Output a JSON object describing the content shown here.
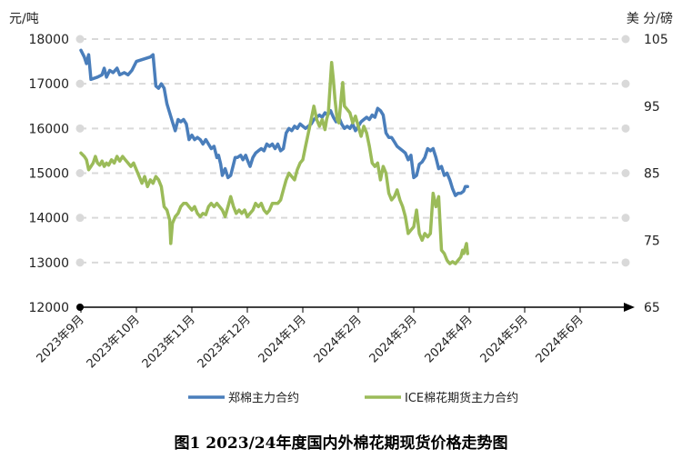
{
  "caption": "图1 2023/24年度国内外棉花期现货价格走势图",
  "chart_data": {
    "type": "line",
    "title": "图1 2023/24年度国内外棉花期现货价格走势图",
    "left_axis": {
      "unit": "元/吨",
      "range": [
        12000,
        18000
      ],
      "ticks": [
        12000,
        13000,
        14000,
        15000,
        16000,
        17000,
        18000
      ]
    },
    "right_axis": {
      "unit": "美 分/磅",
      "range": [
        65,
        105
      ],
      "ticks": [
        65,
        75,
        85,
        95,
        105
      ]
    },
    "x_categories": [
      "2023年9月",
      "2023年10月",
      "2023年11月",
      "2023年12月",
      "2024年1月",
      "2024年2月",
      "2024年3月",
      "2024年4月",
      "2024年5月",
      "2024年6月"
    ],
    "grid": "horizontal dashed",
    "legend_position": "bottom",
    "colors": {
      "zce": "#4a7ebb",
      "ice": "#9bbb59",
      "grid": "#d9d9d9",
      "axis": "#000000"
    },
    "series": [
      {
        "name": "郑棉主力合约",
        "axis": "left",
        "points": [
          [
            0.0,
            17750
          ],
          [
            0.06,
            17600
          ],
          [
            0.1,
            17450
          ],
          [
            0.14,
            17650
          ],
          [
            0.18,
            17100
          ],
          [
            0.3,
            17150
          ],
          [
            0.38,
            17200
          ],
          [
            0.42,
            17350
          ],
          [
            0.46,
            17150
          ],
          [
            0.52,
            17300
          ],
          [
            0.58,
            17250
          ],
          [
            0.65,
            17350
          ],
          [
            0.7,
            17200
          ],
          [
            0.78,
            17250
          ],
          [
            0.85,
            17200
          ],
          [
            0.92,
            17300
          ],
          [
            1.0,
            17500
          ],
          [
            1.25,
            17600
          ],
          [
            1.3,
            17650
          ],
          [
            1.35,
            16950
          ],
          [
            1.4,
            16900
          ],
          [
            1.45,
            17000
          ],
          [
            1.5,
            16900
          ],
          [
            1.55,
            16550
          ],
          [
            1.6,
            16350
          ],
          [
            1.65,
            16150
          ],
          [
            1.7,
            15950
          ],
          [
            1.75,
            16200
          ],
          [
            1.8,
            16150
          ],
          [
            1.85,
            16200
          ],
          [
            1.9,
            16100
          ],
          [
            1.95,
            15750
          ],
          [
            2.0,
            15850
          ],
          [
            2.05,
            15750
          ],
          [
            2.1,
            15800
          ],
          [
            2.15,
            15750
          ],
          [
            2.2,
            15650
          ],
          [
            2.25,
            15750
          ],
          [
            2.3,
            15650
          ],
          [
            2.35,
            15550
          ],
          [
            2.4,
            15600
          ],
          [
            2.45,
            15350
          ],
          [
            2.48,
            15400
          ],
          [
            2.52,
            15200
          ],
          [
            2.55,
            14950
          ],
          [
            2.6,
            15100
          ],
          [
            2.65,
            14900
          ],
          [
            2.7,
            14950
          ],
          [
            2.75,
            15200
          ],
          [
            2.78,
            15350
          ],
          [
            2.82,
            15350
          ],
          [
            2.88,
            15400
          ],
          [
            2.92,
            15300
          ],
          [
            2.97,
            15400
          ],
          [
            3.0,
            15300
          ],
          [
            3.05,
            15150
          ],
          [
            3.1,
            15350
          ],
          [
            3.15,
            15450
          ],
          [
            3.2,
            15500
          ],
          [
            3.25,
            15550
          ],
          [
            3.3,
            15500
          ],
          [
            3.35,
            15650
          ],
          [
            3.4,
            15600
          ],
          [
            3.45,
            15650
          ],
          [
            3.5,
            15550
          ],
          [
            3.55,
            15650
          ],
          [
            3.6,
            15500
          ],
          [
            3.65,
            15550
          ],
          [
            3.7,
            15900
          ],
          [
            3.75,
            16000
          ],
          [
            3.8,
            15950
          ],
          [
            3.85,
            16050
          ],
          [
            3.9,
            16000
          ],
          [
            3.95,
            16100
          ],
          [
            4.0,
            16050
          ],
          [
            4.05,
            16000
          ],
          [
            4.1,
            16050
          ],
          [
            4.15,
            16100
          ],
          [
            4.2,
            16200
          ],
          [
            4.25,
            16250
          ],
          [
            4.3,
            16300
          ],
          [
            4.35,
            16250
          ],
          [
            4.4,
            16350
          ],
          [
            4.45,
            16300
          ],
          [
            4.5,
            16400
          ],
          [
            4.55,
            16250
          ],
          [
            4.6,
            16150
          ],
          [
            4.65,
            16250
          ],
          [
            4.7,
            16100
          ],
          [
            4.75,
            16000
          ],
          [
            4.8,
            16050
          ],
          [
            4.85,
            16000
          ],
          [
            4.9,
            16100
          ],
          [
            4.95,
            15950
          ],
          [
            5.0,
            16050
          ],
          [
            5.05,
            16150
          ],
          [
            5.1,
            16200
          ],
          [
            5.15,
            16250
          ],
          [
            5.2,
            16200
          ],
          [
            5.25,
            16300
          ],
          [
            5.3,
            16250
          ],
          [
            5.35,
            16450
          ],
          [
            5.4,
            16400
          ],
          [
            5.45,
            16300
          ],
          [
            5.5,
            15900
          ],
          [
            5.55,
            15800
          ],
          [
            5.6,
            15800
          ],
          [
            5.65,
            15700
          ],
          [
            5.7,
            15600
          ],
          [
            5.75,
            15550
          ],
          [
            5.8,
            15500
          ],
          [
            5.85,
            15450
          ],
          [
            5.9,
            15300
          ],
          [
            5.95,
            15400
          ],
          [
            6.0,
            14900
          ],
          [
            6.05,
            14950
          ],
          [
            6.1,
            15200
          ],
          [
            6.15,
            15250
          ],
          [
            6.2,
            15350
          ],
          [
            6.25,
            15550
          ],
          [
            6.3,
            15500
          ],
          [
            6.35,
            15550
          ],
          [
            6.4,
            15350
          ],
          [
            6.45,
            15100
          ],
          [
            6.5,
            15150
          ],
          [
            6.55,
            14950
          ],
          [
            6.6,
            15000
          ],
          [
            6.65,
            14850
          ],
          [
            6.7,
            14650
          ],
          [
            6.75,
            14500
          ],
          [
            6.8,
            14550
          ],
          [
            6.85,
            14550
          ],
          [
            6.9,
            14600
          ],
          [
            6.93,
            14700
          ],
          [
            6.97,
            14700
          ]
        ]
      },
      {
        "name": "ICE棉花期货主力合约",
        "axis": "right",
        "points": [
          [
            0.0,
            88.0
          ],
          [
            0.06,
            87.5
          ],
          [
            0.1,
            87.0
          ],
          [
            0.14,
            85.5
          ],
          [
            0.18,
            86.0
          ],
          [
            0.22,
            86.5
          ],
          [
            0.26,
            87.5
          ],
          [
            0.3,
            86.5
          ],
          [
            0.34,
            86.2
          ],
          [
            0.38,
            86.8
          ],
          [
            0.42,
            86.0
          ],
          [
            0.46,
            86.5
          ],
          [
            0.5,
            86.2
          ],
          [
            0.55,
            87.0
          ],
          [
            0.6,
            86.5
          ],
          [
            0.65,
            87.5
          ],
          [
            0.7,
            86.8
          ],
          [
            0.75,
            87.5
          ],
          [
            0.8,
            87.0
          ],
          [
            0.85,
            86.5
          ],
          [
            0.9,
            86.0
          ],
          [
            0.95,
            86.5
          ],
          [
            1.0,
            85.5
          ],
          [
            1.05,
            84.5
          ],
          [
            1.1,
            83.5
          ],
          [
            1.15,
            84.5
          ],
          [
            1.2,
            83.0
          ],
          [
            1.25,
            84.0
          ],
          [
            1.3,
            83.5
          ],
          [
            1.35,
            84.5
          ],
          [
            1.4,
            84.0
          ],
          [
            1.45,
            83.0
          ],
          [
            1.5,
            80.0
          ],
          [
            1.55,
            79.5
          ],
          [
            1.6,
            78.0
          ],
          [
            1.62,
            74.5
          ],
          [
            1.65,
            77.5
          ],
          [
            1.7,
            78.5
          ],
          [
            1.75,
            79.0
          ],
          [
            1.8,
            80.0
          ],
          [
            1.85,
            80.5
          ],
          [
            1.9,
            80.5
          ],
          [
            1.95,
            80.0
          ],
          [
            2.0,
            79.5
          ],
          [
            2.05,
            80.0
          ],
          [
            2.1,
            79.0
          ],
          [
            2.15,
            78.5
          ],
          [
            2.2,
            79.0
          ],
          [
            2.25,
            78.8
          ],
          [
            2.3,
            80.0
          ],
          [
            2.35,
            80.5
          ],
          [
            2.4,
            80.0
          ],
          [
            2.45,
            80.5
          ],
          [
            2.5,
            80.0
          ],
          [
            2.55,
            79.5
          ],
          [
            2.6,
            78.5
          ],
          [
            2.65,
            80.0
          ],
          [
            2.7,
            81.5
          ],
          [
            2.75,
            80.0
          ],
          [
            2.8,
            79.0
          ],
          [
            2.85,
            79.5
          ],
          [
            2.9,
            79.0
          ],
          [
            2.95,
            79.5
          ],
          [
            3.0,
            78.5
          ],
          [
            3.05,
            79.0
          ],
          [
            3.1,
            79.5
          ],
          [
            3.15,
            80.5
          ],
          [
            3.2,
            80.0
          ],
          [
            3.25,
            80.5
          ],
          [
            3.3,
            79.5
          ],
          [
            3.35,
            79.0
          ],
          [
            3.4,
            79.5
          ],
          [
            3.45,
            80.5
          ],
          [
            3.5,
            80.5
          ],
          [
            3.55,
            80.5
          ],
          [
            3.6,
            81.0
          ],
          [
            3.65,
            82.5
          ],
          [
            3.7,
            84.0
          ],
          [
            3.75,
            85.0
          ],
          [
            3.8,
            84.5
          ],
          [
            3.85,
            84.0
          ],
          [
            3.9,
            85.5
          ],
          [
            3.95,
            86.5
          ],
          [
            4.0,
            87.0
          ],
          [
            4.05,
            89.0
          ],
          [
            4.1,
            91.0
          ],
          [
            4.15,
            93.0
          ],
          [
            4.2,
            95.0
          ],
          [
            4.25,
            93.0
          ],
          [
            4.3,
            92.0
          ],
          [
            4.35,
            93.0
          ],
          [
            4.4,
            91.5
          ],
          [
            4.43,
            93.0
          ],
          [
            4.46,
            94.0
          ],
          [
            4.5,
            99.0
          ],
          [
            4.52,
            101.5
          ],
          [
            4.55,
            99.0
          ],
          [
            4.58,
            96.0
          ],
          [
            4.62,
            93.0
          ],
          [
            4.65,
            92.5
          ],
          [
            4.7,
            97.0
          ],
          [
            4.72,
            98.5
          ],
          [
            4.75,
            95.0
          ],
          [
            4.8,
            94.5
          ],
          [
            4.85,
            94.0
          ],
          [
            4.9,
            92.5
          ],
          [
            4.95,
            93.5
          ],
          [
            5.0,
            92.0
          ],
          [
            5.05,
            90.5
          ],
          [
            5.1,
            92.0
          ],
          [
            5.15,
            91.0
          ],
          [
            5.2,
            89.0
          ],
          [
            5.25,
            86.5
          ],
          [
            5.3,
            86.0
          ],
          [
            5.35,
            86.5
          ],
          [
            5.4,
            84.0
          ],
          [
            5.45,
            86.0
          ],
          [
            5.5,
            85.0
          ],
          [
            5.55,
            82.0
          ],
          [
            5.6,
            81.0
          ],
          [
            5.65,
            81.5
          ],
          [
            5.7,
            82.5
          ],
          [
            5.75,
            81.0
          ],
          [
            5.8,
            80.0
          ],
          [
            5.85,
            78.5
          ],
          [
            5.9,
            76.0
          ],
          [
            5.95,
            76.5
          ],
          [
            6.0,
            77.0
          ],
          [
            6.05,
            79.5
          ],
          [
            6.1,
            76.0
          ],
          [
            6.15,
            75.0
          ],
          [
            6.2,
            76.0
          ],
          [
            6.25,
            75.5
          ],
          [
            6.3,
            76.0
          ],
          [
            6.35,
            82.0
          ],
          [
            6.4,
            80.0
          ],
          [
            6.45,
            81.5
          ],
          [
            6.5,
            73.5
          ],
          [
            6.55,
            73.0
          ],
          [
            6.6,
            72.0
          ],
          [
            6.65,
            71.5
          ],
          [
            6.7,
            71.8
          ],
          [
            6.75,
            71.5
          ],
          [
            6.8,
            72.0
          ],
          [
            6.85,
            72.5
          ],
          [
            6.88,
            73.5
          ],
          [
            6.9,
            73.0
          ],
          [
            6.95,
            74.5
          ],
          [
            6.97,
            73.0
          ]
        ]
      }
    ]
  }
}
